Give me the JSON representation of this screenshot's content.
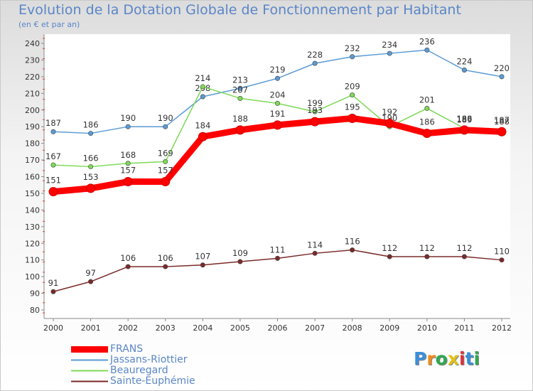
{
  "title": "Evolution de la Dotation Globale de Fonctionnement par Habitant",
  "subtitle": "(en € et par an)",
  "logo_text": "Proxiti",
  "logo_colors": [
    "#3b8fd9",
    "#f28a1a",
    "#2fa84f",
    "#e0c21a",
    "#d8323c",
    "#3b8fd9",
    "#2fa84f"
  ],
  "chart_data": {
    "type": "line",
    "x": [
      "2000",
      "2001",
      "2002",
      "2003",
      "2004",
      "2005",
      "2006",
      "2007",
      "2008",
      "2009",
      "2010",
      "2011",
      "2012"
    ],
    "ylim": [
      80,
      240
    ],
    "yticks": [
      "80",
      "90",
      "100",
      "110",
      "120",
      "130",
      "140",
      "150",
      "160",
      "170",
      "180",
      "190",
      "200",
      "210",
      "220",
      "230",
      "240"
    ],
    "grid": false,
    "series": [
      {
        "name": "Jassans-Riottier",
        "color": "#5b9bd5",
        "values": [
          187,
          186,
          190,
          190,
          208,
          213,
          219,
          228,
          232,
          234,
          236,
          224,
          220
        ]
      },
      {
        "name": "Beauregard",
        "color": "#7ed957",
        "values": [
          167,
          166,
          168,
          169,
          214,
          207,
          204,
          199,
          209,
          190,
          201,
          189,
          188
        ]
      },
      {
        "name": "FRANS",
        "color": "#ff0000",
        "values": [
          151,
          153,
          157,
          157,
          184,
          188,
          191,
          193,
          195,
          192,
          186,
          188,
          187
        ]
      },
      {
        "name": "Sainte-Euphémie",
        "color": "#7b2a2a",
        "values": [
          91,
          97,
          106,
          106,
          107,
          109,
          111,
          114,
          116,
          112,
          112,
          112,
          110
        ]
      }
    ],
    "legend": {
      "position": "bottom-left",
      "entries": [
        "FRANS",
        "Jassans-Riottier",
        "Beauregard",
        "Sainte-Euphémie"
      ]
    }
  }
}
